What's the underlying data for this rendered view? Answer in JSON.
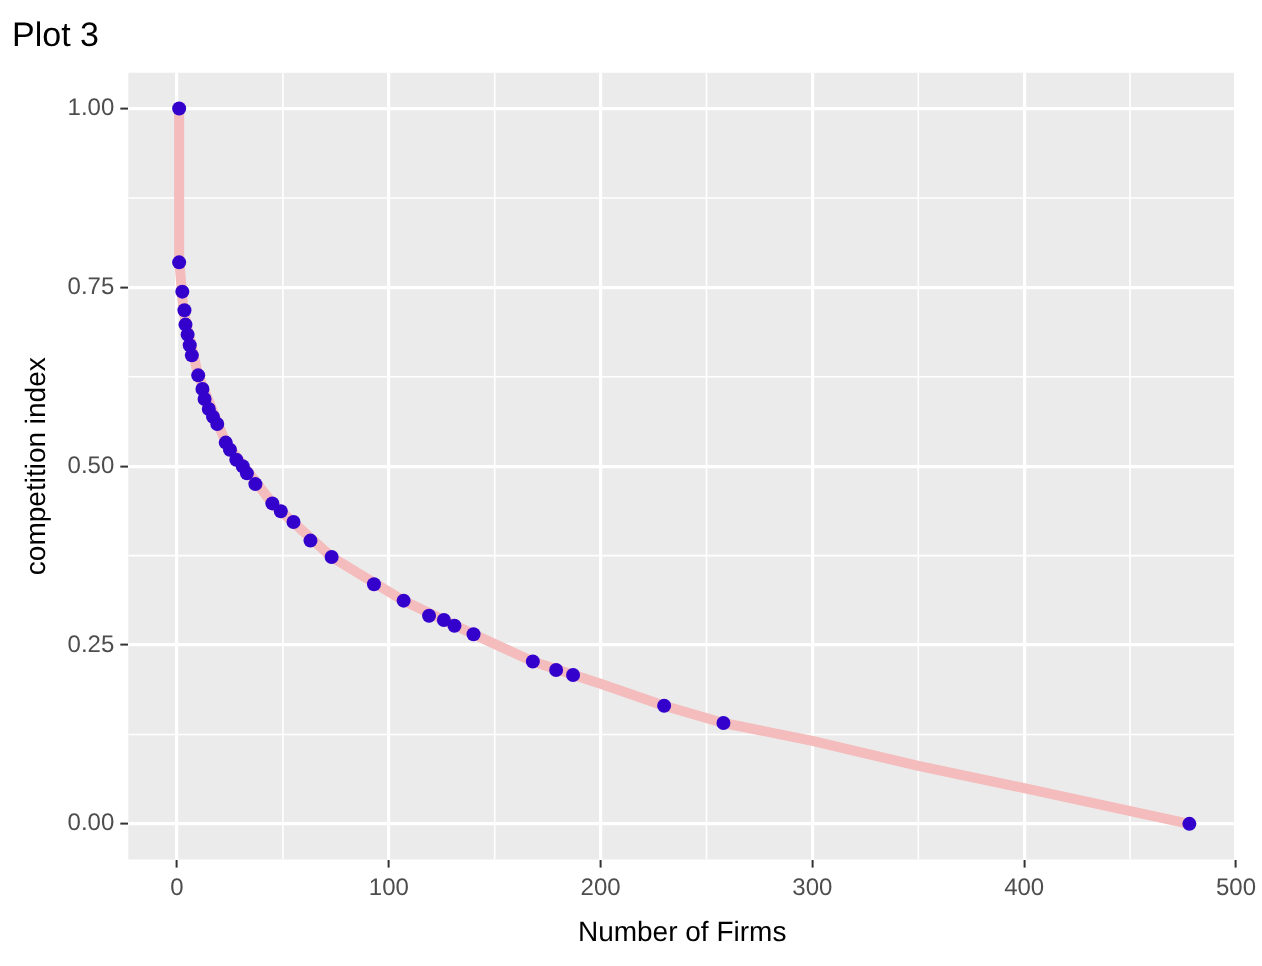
{
  "chart_data": {
    "type": "scatter",
    "title": "Plot 3",
    "xlabel": "Number of Firms",
    "ylabel": "competition index",
    "xlim": [
      -23,
      500
    ],
    "xticks": [
      0,
      100,
      200,
      300,
      400,
      500
    ],
    "ylim": [
      -0.05,
      1.05
    ],
    "yticks": [
      {
        "value": 0,
        "label": "0.00"
      },
      {
        "value": 0.25,
        "label": "0.25"
      },
      {
        "value": 0.5,
        "label": "0.50"
      },
      {
        "value": 0.75,
        "label": "0.75"
      },
      {
        "value": 1,
        "label": "1.00"
      }
    ],
    "grid": true,
    "series": [
      {
        "type": "line",
        "color": "#f4bcbc",
        "x": [
          1,
          1,
          3,
          10,
          23,
          45,
          73,
          107,
          140,
          168,
          200,
          230,
          258,
          300,
          350,
          400,
          478
        ],
        "values": [
          1.0,
          0.79,
          0.718,
          0.627,
          0.533,
          0.448,
          0.373,
          0.312,
          0.265,
          0.227,
          0.196,
          0.165,
          0.141,
          0.116,
          0.081,
          0.05,
          0.0
        ]
      },
      {
        "color": "#3300cc",
        "marker": "circle",
        "x": [
          1,
          1,
          2.5,
          3.5,
          4,
          5,
          6,
          7,
          10,
          12,
          13,
          15,
          17,
          19,
          23,
          25,
          28,
          31,
          33,
          37,
          45,
          49,
          55,
          63,
          73,
          93,
          107,
          119,
          126,
          131,
          140,
          168,
          179,
          187,
          230,
          258,
          478
        ],
        "values": [
          1.0,
          0.785,
          0.744,
          0.718,
          0.698,
          0.684,
          0.669,
          0.655,
          0.627,
          0.608,
          0.594,
          0.58,
          0.569,
          0.559,
          0.533,
          0.523,
          0.509,
          0.5,
          0.49,
          0.475,
          0.448,
          0.437,
          0.422,
          0.396,
          0.373,
          0.335,
          0.312,
          0.291,
          0.285,
          0.277,
          0.265,
          0.227,
          0.215,
          0.208,
          0.165,
          0.141,
          0.0
        ]
      }
    ]
  }
}
